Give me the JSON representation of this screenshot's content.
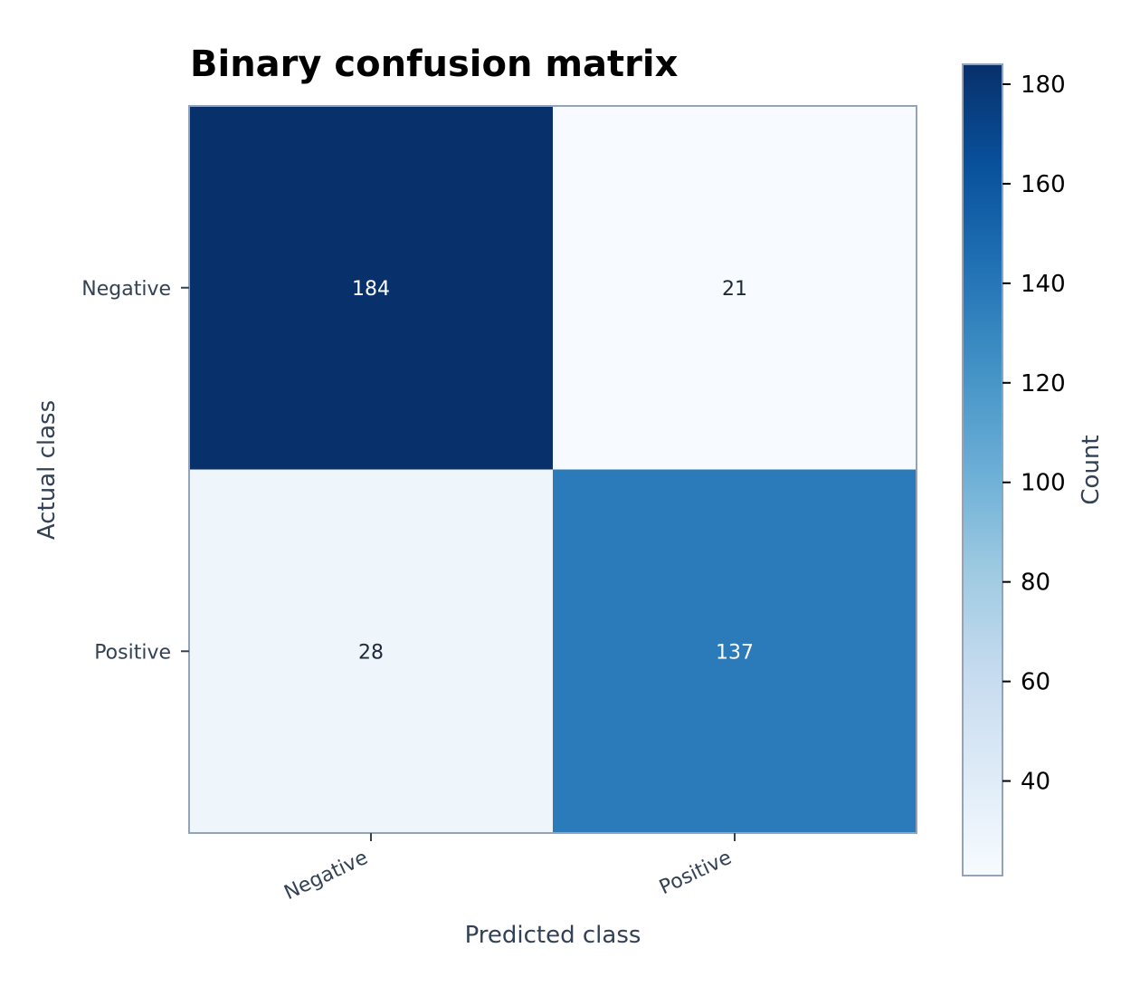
{
  "chart_data": {
    "type": "heatmap",
    "title": "Binary confusion matrix",
    "xlabel": "Predicted class",
    "ylabel": "Actual class",
    "x_categories": [
      "Negative",
      "Positive"
    ],
    "y_categories": [
      "Negative",
      "Positive"
    ],
    "values": [
      [
        184,
        21
      ],
      [
        28,
        137
      ]
    ],
    "colormap": "Blues",
    "colorbar": {
      "label": "Count",
      "range": [
        21,
        184
      ],
      "ticks": [
        40,
        60,
        80,
        100,
        120,
        140,
        160,
        180
      ]
    },
    "grid": false
  }
}
